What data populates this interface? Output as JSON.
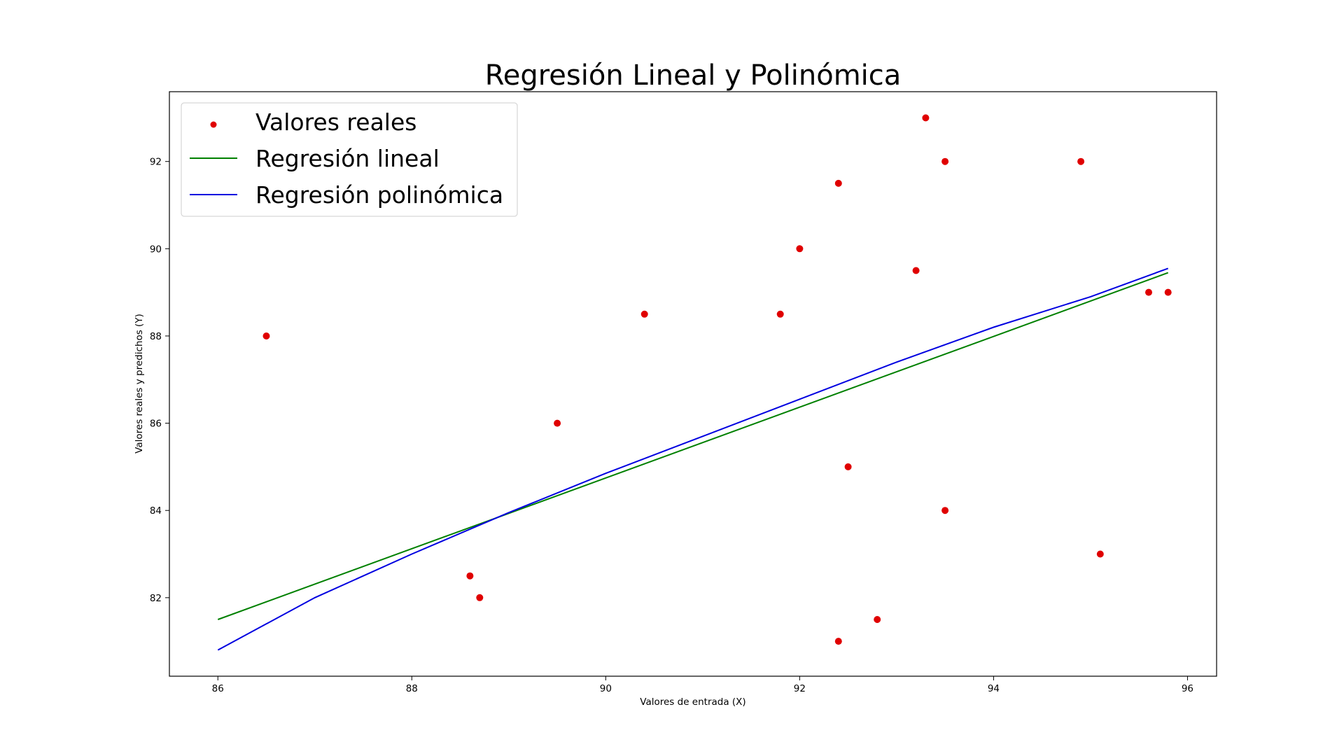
{
  "chart_data": {
    "type": "scatter",
    "title": "Regresión Lineal y Polinómica",
    "xlabel": "Valores de entrada (X)",
    "ylabel": "Valores reales y predichos (Y)",
    "xlim": [
      85.5,
      96.3
    ],
    "ylim": [
      80.2,
      93.6
    ],
    "xticks": [
      86,
      88,
      90,
      92,
      94,
      96
    ],
    "yticks": [
      82,
      84,
      86,
      88,
      90,
      92
    ],
    "grid": false,
    "legend_position": "top-left",
    "series": [
      {
        "name": "Valores reales",
        "kind": "scatter",
        "color": "#e00000",
        "points": [
          [
            86.5,
            88.0
          ],
          [
            88.6,
            82.5
          ],
          [
            88.7,
            82.0
          ],
          [
            89.5,
            86.0
          ],
          [
            90.4,
            88.5
          ],
          [
            91.8,
            88.5
          ],
          [
            92.0,
            90.0
          ],
          [
            92.4,
            91.5
          ],
          [
            92.4,
            81.0
          ],
          [
            92.5,
            85.0
          ],
          [
            92.8,
            81.5
          ],
          [
            93.2,
            89.5
          ],
          [
            93.3,
            93.0
          ],
          [
            93.5,
            92.0
          ],
          [
            93.5,
            84.0
          ],
          [
            94.9,
            92.0
          ],
          [
            95.1,
            83.0
          ],
          [
            95.6,
            89.0
          ],
          [
            95.8,
            89.0
          ]
        ]
      },
      {
        "name": "Regresión lineal",
        "kind": "line",
        "color": "#008000",
        "points": [
          [
            86.0,
            81.5
          ],
          [
            95.8,
            89.45
          ]
        ]
      },
      {
        "name": "Regresión polinómica",
        "kind": "line",
        "color": "#0000e0",
        "points": [
          [
            86.0,
            80.8
          ],
          [
            87.0,
            82.0
          ],
          [
            88.0,
            83.0
          ],
          [
            89.0,
            83.95
          ],
          [
            90.0,
            84.85
          ],
          [
            91.0,
            85.7
          ],
          [
            92.0,
            86.55
          ],
          [
            93.0,
            87.4
          ],
          [
            94.0,
            88.2
          ],
          [
            95.0,
            88.9
          ],
          [
            95.8,
            89.55
          ]
        ]
      }
    ]
  }
}
